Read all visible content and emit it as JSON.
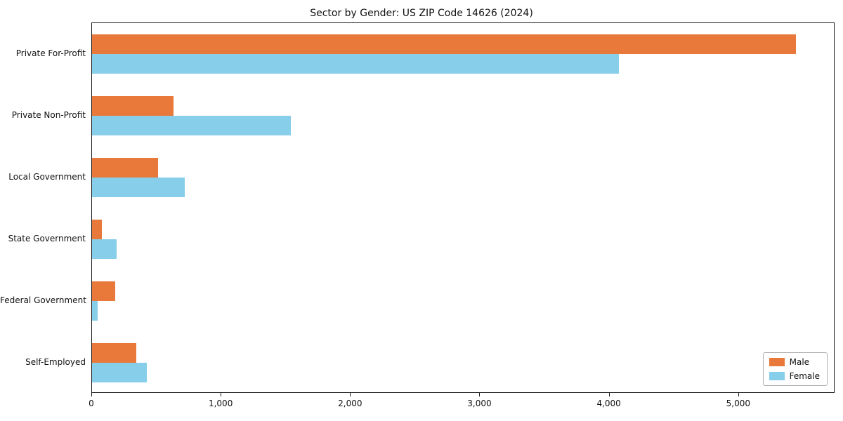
{
  "chart_data": {
    "type": "bar",
    "orientation": "horizontal",
    "title": "Sector by Gender: US ZIP Code 14626 (2024)",
    "categories": [
      "Private For-Profit",
      "Private Non-Profit",
      "Local Government",
      "State Government",
      "Federal Government",
      "Self-Employed"
    ],
    "series": [
      {
        "name": "Male",
        "color": "#e8793a",
        "values": [
          5450,
          630,
          510,
          75,
          180,
          345
        ]
      },
      {
        "name": "Female",
        "color": "#87ceeb",
        "values": [
          4080,
          1540,
          720,
          190,
          45,
          425
        ]
      }
    ],
    "xlim": [
      0,
      5745
    ],
    "xticks": [
      0,
      1000,
      2000,
      3000,
      4000,
      5000
    ],
    "xtick_labels": [
      "0",
      "1,000",
      "2,000",
      "3,000",
      "4,000",
      "5,000"
    ],
    "ylabel": "",
    "xlabel": "",
    "grid": false,
    "legend_position": "lower right"
  }
}
